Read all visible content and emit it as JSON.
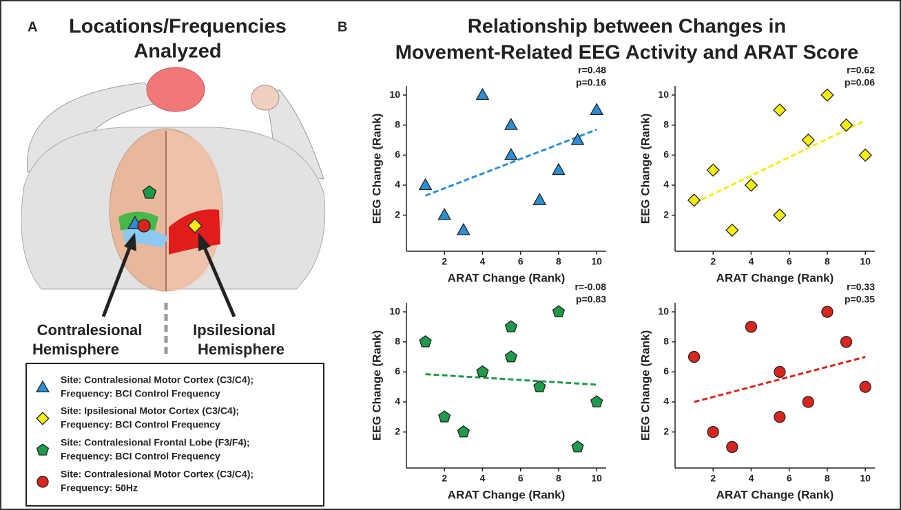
{
  "panel_a": {
    "letter": "A",
    "title": [
      "Locations/Frequencies",
      "Analyzed"
    ],
    "contralesional": [
      "Contralesional",
      "Hemisphere"
    ],
    "ipsilesional": [
      "Ipsilesional",
      "Hemisphere"
    ],
    "legend": [
      [
        "Site: Contralesional Motor Cortex (C3/C4);",
        "Frequency: BCI Control Frequency"
      ],
      [
        "Site: Ipsilesional Motor Cortex (C3/C4);",
        "Frequency: BCI Control Frequency"
      ],
      [
        "Site: Contralesional Frontal Lobe (F3/F4);",
        "Frequency: BCI Control Frequency"
      ],
      [
        "Site: Contralesional Motor Cortex (C3/C4);",
        "Frequency: 50Hz"
      ]
    ]
  },
  "panel_b": {
    "letter": "B",
    "title": [
      "Relationship between Changes in",
      "Movement-Related EEG Activity and ARAT Score"
    ]
  },
  "chart_data": [
    {
      "type": "scatter",
      "xlabel": "ARAT Change (Rank)",
      "ylabel": "EEG Change (Rank)",
      "annotations": [
        "r=0.48",
        "p=0.16"
      ],
      "marker": "triangle",
      "color": "#2a8fd4",
      "x": [
        1,
        2,
        3,
        4,
        5.5,
        5.5,
        7,
        8,
        9,
        10
      ],
      "y": [
        4,
        2,
        1,
        10,
        8,
        6,
        3,
        5,
        7,
        9
      ],
      "trend_x": [
        1,
        10
      ],
      "trend_y": [
        3.3,
        7.7
      ],
      "xlim": [
        0,
        10.5
      ],
      "ylim": [
        -0.4,
        10.6
      ],
      "xticks": [
        2,
        4,
        6,
        8,
        10
      ],
      "yticks": [
        2,
        4,
        6,
        8,
        10
      ]
    },
    {
      "type": "scatter",
      "xlabel": "ARAT Change (Rank)",
      "ylabel": "EEG Change (Rank)",
      "annotations": [
        "r=0.62",
        "p=0.06"
      ],
      "marker": "diamond",
      "color": "#f5ee10",
      "x": [
        1,
        2,
        3,
        4,
        5.5,
        5.5,
        7,
        8,
        9,
        10
      ],
      "y": [
        3,
        5,
        1,
        4,
        9,
        2,
        7,
        10,
        8,
        6
      ],
      "trend_x": [
        1,
        10
      ],
      "trend_y": [
        2.8,
        8.3
      ],
      "xlim": [
        0,
        10.5
      ],
      "ylim": [
        -0.4,
        10.6
      ],
      "xticks": [
        2,
        4,
        6,
        8,
        10
      ],
      "yticks": [
        2,
        4,
        6,
        8,
        10
      ]
    },
    {
      "type": "scatter",
      "xlabel": "ARAT Change (Rank)",
      "ylabel": "EEG Change (Rank)",
      "annotations": [
        "r=-0.08",
        "p=0.83"
      ],
      "marker": "pentagon",
      "color": "#1e9a4a",
      "x": [
        1,
        2,
        3,
        4,
        5.5,
        5.5,
        7,
        8,
        9,
        10
      ],
      "y": [
        8,
        3,
        2,
        6,
        9,
        7,
        5,
        10,
        1,
        4
      ],
      "trend_x": [
        1,
        10
      ],
      "trend_y": [
        5.85,
        5.15
      ],
      "xlim": [
        0,
        10.5
      ],
      "ylim": [
        -0.4,
        10.6
      ],
      "xticks": [
        2,
        4,
        6,
        8,
        10
      ],
      "yticks": [
        2,
        4,
        6,
        8,
        10
      ]
    },
    {
      "type": "scatter",
      "xlabel": "ARAT Change (Rank)",
      "ylabel": "EEG Change (Rank)",
      "annotations": [
        "r=0.33",
        "p=0.35"
      ],
      "marker": "circle",
      "color": "#d8261f",
      "x": [
        1,
        2,
        3,
        4,
        5.5,
        5.5,
        7,
        8,
        9,
        10
      ],
      "y": [
        7,
        2,
        1,
        9,
        6,
        3,
        4,
        10,
        8,
        5
      ],
      "trend_x": [
        1,
        10
      ],
      "trend_y": [
        4,
        7
      ],
      "xlim": [
        0,
        10.5
      ],
      "ylim": [
        -0.4,
        10.6
      ],
      "xticks": [
        2,
        4,
        6,
        8,
        10
      ],
      "yticks": [
        2,
        4,
        6,
        8,
        10
      ]
    }
  ]
}
